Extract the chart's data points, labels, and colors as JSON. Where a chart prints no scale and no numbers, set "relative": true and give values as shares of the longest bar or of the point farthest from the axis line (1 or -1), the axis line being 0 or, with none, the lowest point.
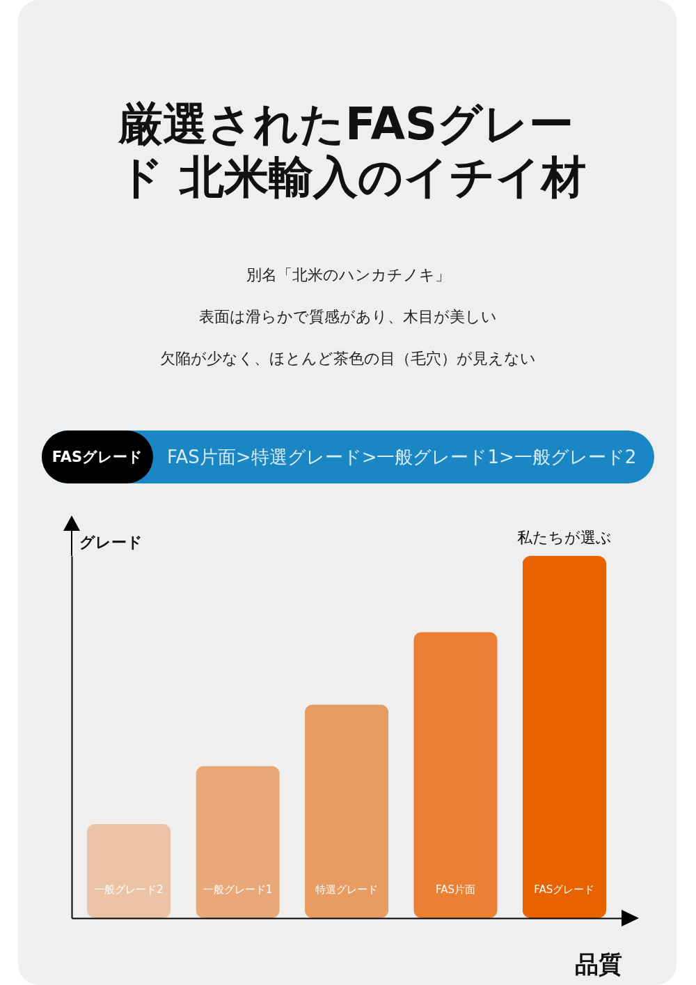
{
  "chart_data": {
    "type": "bar",
    "relative": true,
    "title": "厳選されたFASグレード 北米輸入のイチイ材",
    "subtitle": "別名「北米のハンカチノキ」",
    "xlabel": "品質",
    "ylabel": "グレード",
    "categories": [
      "一般グレード2",
      "一般グレード1",
      "特選グレード",
      "FAS片面",
      "FASグレード"
    ],
    "values": [
      0.26,
      0.42,
      0.59,
      0.79,
      1
    ],
    "colors": [
      "#ecc3a4",
      "#e9a877",
      "#e99c62",
      "#eb7f34",
      "#e96200"
    ],
    "annotations": [
      {
        "text": "私たちが選ぶ",
        "x": "FASグレード",
        "y": 1
      },
      "表面は滑らかで質感があり、木目が美しい",
      "欠陥が少なく、ほとんど茶色の目（毛穴）が見えない",
      "FASグレード",
      "FAS片面>特選グレード>一般グレード1>一般グレード2"
    ],
    "grid": false
  }
}
